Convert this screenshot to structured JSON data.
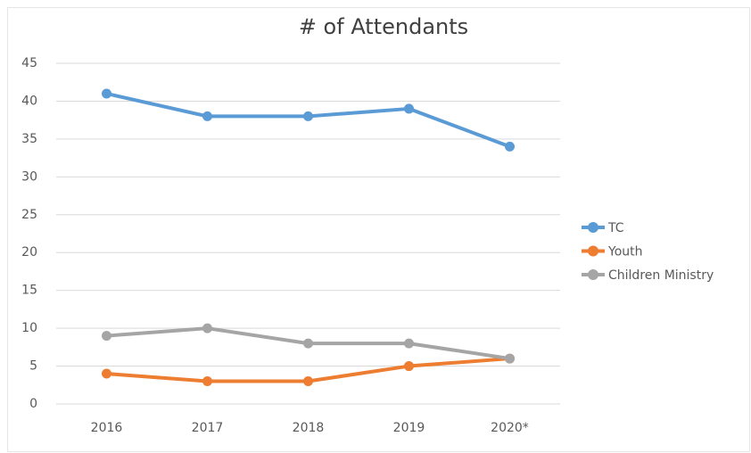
{
  "chart_data": {
    "type": "line",
    "title": "# of Attendants",
    "categories": [
      "2016",
      "2017",
      "2018",
      "2019",
      "2020*"
    ],
    "series": [
      {
        "name": "TC",
        "color": "#5b9bd5",
        "values": [
          41,
          38,
          38,
          39,
          34
        ]
      },
      {
        "name": "Youth",
        "color": "#ed7d31",
        "values": [
          4,
          3,
          3,
          5,
          6
        ]
      },
      {
        "name": "Children Ministry",
        "color": "#a5a5a5",
        "values": [
          9,
          10,
          8,
          8,
          6
        ]
      }
    ],
    "ylim": [
      0,
      45
    ],
    "yticks": [
      0,
      5,
      10,
      15,
      20,
      25,
      30,
      35,
      40,
      45
    ],
    "grid": true,
    "legend": "right"
  }
}
